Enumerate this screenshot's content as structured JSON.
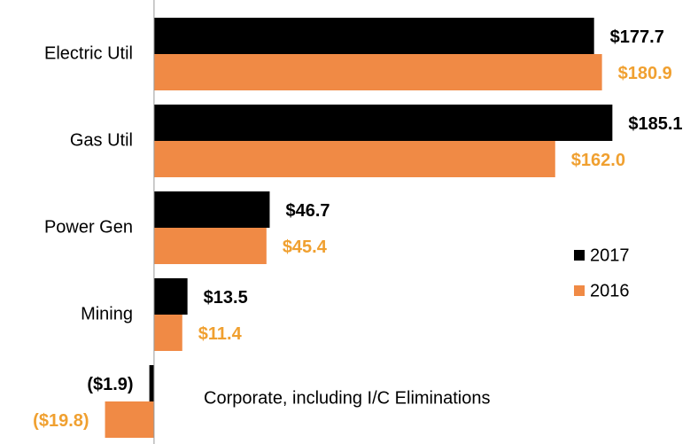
{
  "chart_data": {
    "type": "hbar",
    "categories": [
      "Electric Util",
      "Gas Util",
      "Power Gen",
      "Mining",
      null
    ],
    "series": [
      {
        "name": "2017",
        "color": "#000000",
        "label_color": "#000000",
        "values": [
          177.7,
          185.1,
          46.7,
          13.5,
          -1.9
        ],
        "value_labels": [
          "$177.7",
          "$185.1",
          "$46.7",
          "$13.5",
          "($1.9)"
        ]
      },
      {
        "name": "2016",
        "color": "#f08a45",
        "label_color": "#f0a030",
        "values": [
          180.9,
          162.0,
          45.4,
          11.4,
          -19.8
        ],
        "value_labels": [
          "$180.9",
          "$162.0",
          "$45.4",
          "$11.4",
          "($19.8)"
        ]
      }
    ],
    "xlim": [
      -20,
      200
    ],
    "annotation": "Corporate, including I/C Eliminations",
    "legend": "center right"
  }
}
